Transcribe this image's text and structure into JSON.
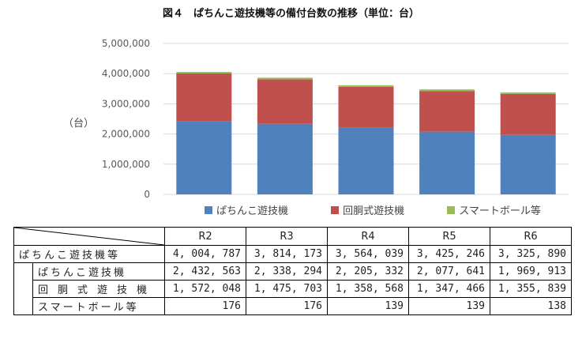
{
  "title": "図４　ぱちんこ遊技機等の備付台数の推移（単位：台）",
  "unit_label": "（台）",
  "colors": {
    "pachinko": "#4F81BD",
    "kaido": "#C0504D",
    "smartball": "#9BBB59",
    "grid": "#D9D9D9",
    "axis_text": "#595959"
  },
  "chart_data": {
    "type": "bar",
    "stacked": true,
    "categories": [
      "R2",
      "R3",
      "R4",
      "R5",
      "R6"
    ],
    "series": [
      {
        "name": "ぱちんこ遊技機",
        "values": [
          2432563,
          2338294,
          2205332,
          2077641,
          1969913
        ]
      },
      {
        "name": "回胴式遊技機",
        "values": [
          1572048,
          1475703,
          1358568,
          1347466,
          1355839
        ]
      },
      {
        "name": "スマートボール等",
        "values": [
          176,
          176,
          139,
          139,
          138
        ]
      }
    ],
    "ylim": [
      0,
      5000000
    ],
    "yticks": [
      "5,000,000",
      "4,000,000",
      "3,000,000",
      "2,000,000",
      "1,000,000",
      "0"
    ],
    "grid": true,
    "legend": "bottom"
  },
  "table": {
    "headers": [
      "R2",
      "R3",
      "R4",
      "R5",
      "R6"
    ],
    "rows": [
      {
        "label": "ぱちんこ遊技機等",
        "values": [
          "4, 004, 787",
          "3, 814, 173",
          "3, 564, 039",
          "3, 425, 246",
          "3, 325, 890"
        ]
      },
      {
        "label": "ぱちんこ遊技機",
        "values": [
          "2, 432, 563",
          "2, 338, 294",
          "2, 205, 332",
          "2, 077, 641",
          "1, 969, 913"
        ]
      },
      {
        "label": "回胴式遊技機",
        "values": [
          "1, 572, 048",
          "1, 475, 703",
          "1, 358, 568",
          "1, 347, 466",
          "1, 355, 839"
        ]
      },
      {
        "label": "スマートボール等",
        "values": [
          "176",
          "176",
          "139",
          "139",
          "138"
        ]
      }
    ]
  }
}
